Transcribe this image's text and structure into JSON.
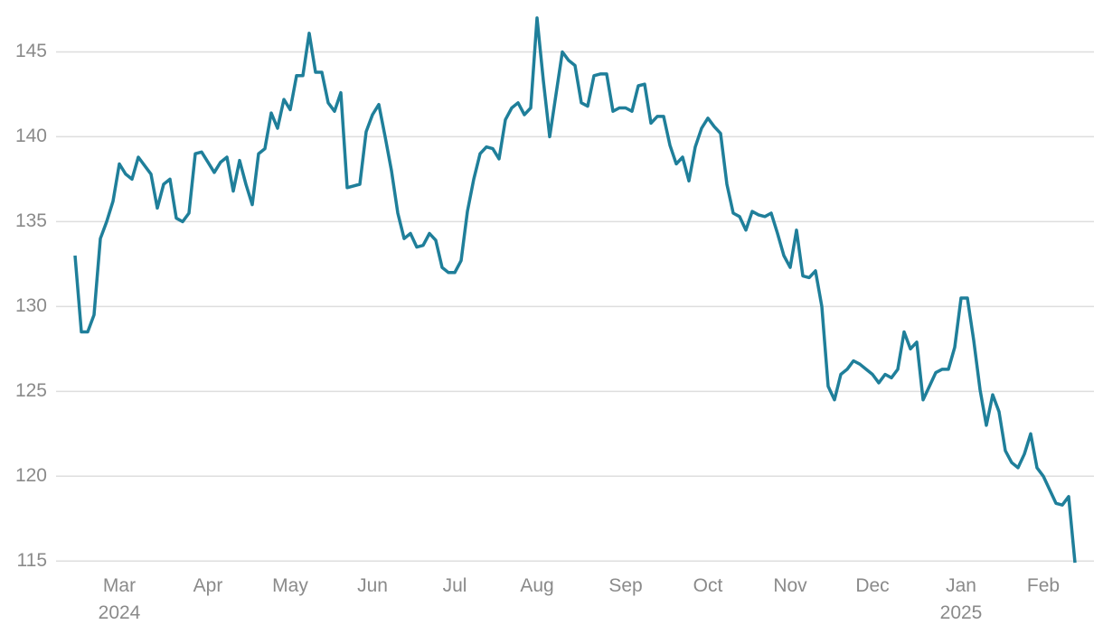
{
  "chart_data": {
    "type": "line",
    "color": "#1f7f9a",
    "grid": true,
    "categories": [
      null,
      null,
      null,
      null,
      null,
      null,
      null,
      "Mar\n2024",
      null,
      null,
      null,
      null,
      null,
      null,
      null,
      null,
      null,
      null,
      null,
      null,
      null,
      "Apr",
      null,
      null,
      null,
      null,
      null,
      null,
      null,
      null,
      null,
      null,
      null,
      null,
      "May",
      null,
      null,
      null,
      null,
      null,
      null,
      null,
      null,
      null,
      null,
      null,
      null,
      "Jun",
      null,
      null,
      null,
      null,
      null,
      null,
      null,
      null,
      null,
      null,
      null,
      null,
      "Jul",
      null,
      null,
      null,
      null,
      null,
      null,
      null,
      null,
      null,
      null,
      null,
      null,
      "Aug",
      null,
      null,
      null,
      null,
      null,
      null,
      null,
      null,
      null,
      null,
      null,
      null,
      null,
      "Sep",
      null,
      null,
      null,
      null,
      null,
      null,
      null,
      null,
      null,
      null,
      null,
      null,
      "Oct",
      null,
      null,
      null,
      null,
      null,
      null,
      null,
      null,
      null,
      null,
      null,
      null,
      "Nov",
      null,
      null,
      null,
      null,
      null,
      null,
      null,
      null,
      null,
      null,
      null,
      null,
      "Dec",
      null,
      null,
      null,
      null,
      null,
      null,
      null,
      null,
      null,
      null,
      null,
      null,
      null,
      "Jan\n2025",
      null,
      null,
      null,
      null,
      null,
      null,
      null,
      null,
      null,
      null,
      null,
      null,
      "Feb",
      null,
      null,
      null,
      null,
      null
    ],
    "values": [
      133,
      128.5,
      128.5,
      129.5,
      134,
      135,
      136.2,
      138.4,
      137.8,
      137.5,
      138.8,
      138.3,
      137.8,
      135.8,
      137.2,
      137.5,
      135.2,
      135,
      135.5,
      139,
      139.1,
      138.5,
      137.9,
      138.5,
      138.8,
      136.8,
      138.6,
      137.2,
      136,
      139,
      139.3,
      141.4,
      140.5,
      142.2,
      141.6,
      143.6,
      143.6,
      146.1,
      143.8,
      143.8,
      142,
      141.5,
      142.6,
      137,
      137.1,
      137.2,
      140.3,
      141.3,
      141.9,
      140,
      138,
      135.5,
      134,
      134.3,
      133.5,
      133.6,
      134.3,
      133.9,
      132.3,
      132,
      132,
      132.7,
      135.6,
      137.5,
      139,
      139.4,
      139.3,
      138.7,
      141,
      141.7,
      142,
      141.3,
      141.7,
      147,
      143.3,
      140,
      142.5,
      145,
      144.5,
      144.2,
      142,
      141.8,
      143.6,
      143.7,
      143.7,
      141.5,
      141.7,
      141.7,
      141.5,
      143,
      143.1,
      140.8,
      141.2,
      141.2,
      139.5,
      138.4,
      138.8,
      137.4,
      139.4,
      140.5,
      141.1,
      140.6,
      140.2,
      137.2,
      135.5,
      135.3,
      134.5,
      135.6,
      135.4,
      135.3,
      135.5,
      134.3,
      133,
      132.3,
      134.5,
      131.8,
      131.7,
      132.1,
      130,
      125.3,
      124.5,
      126,
      126.3,
      126.8,
      126.6,
      126.3,
      126,
      125.5,
      126,
      125.8,
      126.3,
      128.5,
      127.5,
      127.9,
      124.5,
      125.3,
      126.1,
      126.3,
      126.3,
      127.6,
      130.5,
      130.5,
      128,
      125.1,
      123,
      124.8,
      123.8,
      121.5,
      120.8,
      120.5,
      121.3,
      122.5,
      120.5,
      120,
      119.2,
      118.4,
      118.3,
      118.8,
      114.9
    ],
    "ylim": [
      114.8,
      147.1
    ],
    "yticks": [
      115,
      120,
      125,
      130,
      135,
      140,
      145
    ]
  }
}
